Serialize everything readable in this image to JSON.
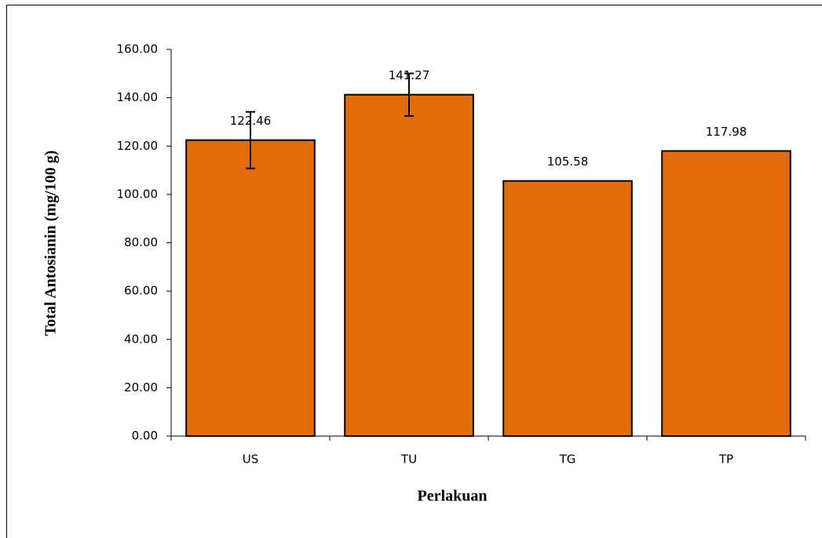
{
  "chart_data": {
    "type": "bar",
    "x_label": "Perlakuan",
    "y_label": "Total Antosianin (mg/100 g)",
    "categories": [
      "US",
      "TU",
      "TG",
      "TP"
    ],
    "values": [
      122.46,
      141.27,
      105.58,
      117.98
    ],
    "errors": [
      11.7,
      8.8,
      null,
      null
    ],
    "color": "#e36c0a",
    "ylim": [
      0,
      160
    ],
    "yticks": [
      {
        "value": 0,
        "label": "0.00"
      },
      {
        "value": 20,
        "label": "20.00"
      },
      {
        "value": 40,
        "label": "40.00"
      },
      {
        "value": 60,
        "label": "60.00"
      },
      {
        "value": 80,
        "label": "80.00"
      },
      {
        "value": 100,
        "label": "100.00"
      },
      {
        "value": 120,
        "label": "120.00"
      },
      {
        "value": 140,
        "label": "140.00"
      },
      {
        "value": 160,
        "label": "160.00"
      }
    ]
  }
}
